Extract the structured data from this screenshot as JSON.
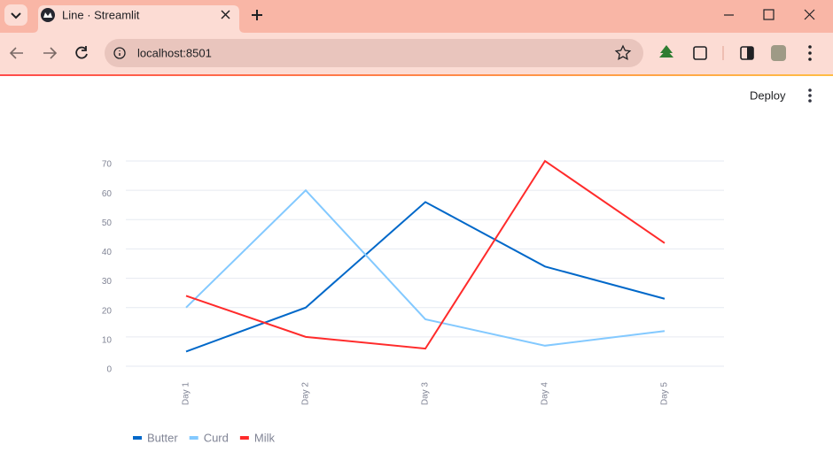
{
  "browser": {
    "tab_title": "Line · Streamlit",
    "url": "localhost:8501"
  },
  "app": {
    "deploy": "Deploy"
  },
  "chart_data": {
    "type": "line",
    "categories": [
      "Day 1",
      "Day 2",
      "Day 3",
      "Day 4",
      "Day 5"
    ],
    "series": [
      {
        "name": "Butter",
        "color": "#0068c9",
        "values": [
          5,
          20,
          56,
          34,
          23
        ]
      },
      {
        "name": "Curd",
        "color": "#83c9ff",
        "values": [
          20,
          60,
          16,
          7,
          12
        ]
      },
      {
        "name": "Milk",
        "color": "#ff2b2b",
        "values": [
          24,
          10,
          6,
          70,
          42
        ]
      }
    ],
    "ylim": [
      0,
      70
    ],
    "yticks": [
      0,
      10,
      20,
      30,
      40,
      50,
      60,
      70
    ],
    "grid": true,
    "legend": "bottom-left"
  }
}
